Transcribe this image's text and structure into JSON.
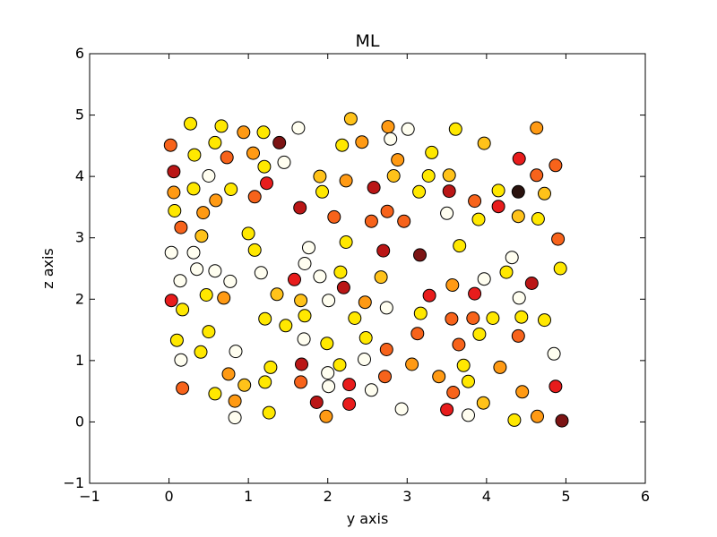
{
  "chart_data": {
    "type": "scatter",
    "title": "ML",
    "xlabel": "y axis",
    "ylabel": "z axis",
    "xlim": [
      -1,
      6
    ],
    "ylim": [
      -1,
      6
    ],
    "xticks": [
      "−1",
      "0",
      "1",
      "2",
      "3",
      "4",
      "5",
      "6"
    ],
    "yticks": [
      "−1",
      "0",
      "1",
      "2",
      "3",
      "4",
      "5",
      "6"
    ],
    "grid": false,
    "legend": "none",
    "colormap": "hot",
    "colors": {
      "white": "#fffef0",
      "yellow": "#ffe800",
      "gold": "#ffc21a",
      "orange": "#ff9a14",
      "dorange": "#f7631b",
      "red": "#e81c1c",
      "dred": "#ba1616",
      "maroon": "#7c1414",
      "black": "#2a120e"
    },
    "points": [
      {
        "x": 0.02,
        "y": 4.51,
        "c": "dorange"
      },
      {
        "x": 0.27,
        "y": 4.86,
        "c": "yellow"
      },
      {
        "x": 0.66,
        "y": 4.82,
        "c": "yellow"
      },
      {
        "x": 0.94,
        "y": 4.72,
        "c": "orange"
      },
      {
        "x": 1.19,
        "y": 4.72,
        "c": "yellow"
      },
      {
        "x": 1.63,
        "y": 4.79,
        "c": "white"
      },
      {
        "x": 2.29,
        "y": 4.94,
        "c": "gold"
      },
      {
        "x": 2.76,
        "y": 4.81,
        "c": "orange"
      },
      {
        "x": 3.01,
        "y": 4.77,
        "c": "white"
      },
      {
        "x": 3.61,
        "y": 4.77,
        "c": "yellow"
      },
      {
        "x": 4.63,
        "y": 4.79,
        "c": "orange"
      },
      {
        "x": 0.58,
        "y": 4.55,
        "c": "yellow"
      },
      {
        "x": 1.39,
        "y": 4.55,
        "c": "maroon"
      },
      {
        "x": 2.18,
        "y": 4.51,
        "c": "yellow"
      },
      {
        "x": 2.43,
        "y": 4.56,
        "c": "orange"
      },
      {
        "x": 2.79,
        "y": 4.61,
        "c": "white"
      },
      {
        "x": 3.97,
        "y": 4.54,
        "c": "gold"
      },
      {
        "x": 0.32,
        "y": 4.35,
        "c": "yellow"
      },
      {
        "x": 0.73,
        "y": 4.31,
        "c": "dorange"
      },
      {
        "x": 1.06,
        "y": 4.38,
        "c": "orange"
      },
      {
        "x": 1.45,
        "y": 4.23,
        "c": "white"
      },
      {
        "x": 2.88,
        "y": 4.27,
        "c": "orange"
      },
      {
        "x": 3.31,
        "y": 4.39,
        "c": "yellow"
      },
      {
        "x": 4.41,
        "y": 4.29,
        "c": "red"
      },
      {
        "x": 4.87,
        "y": 4.18,
        "c": "dorange"
      },
      {
        "x": 1.2,
        "y": 4.16,
        "c": "yellow"
      },
      {
        "x": 0.06,
        "y": 4.08,
        "c": "dred"
      },
      {
        "x": 0.5,
        "y": 4.01,
        "c": "white"
      },
      {
        "x": 1.9,
        "y": 4.0,
        "c": "gold"
      },
      {
        "x": 2.83,
        "y": 4.01,
        "c": "gold"
      },
      {
        "x": 3.27,
        "y": 4.01,
        "c": "yellow"
      },
      {
        "x": 3.53,
        "y": 4.02,
        "c": "gold"
      },
      {
        "x": 4.63,
        "y": 4.02,
        "c": "dorange"
      },
      {
        "x": 1.23,
        "y": 3.89,
        "c": "red"
      },
      {
        "x": 2.23,
        "y": 3.93,
        "c": "orange"
      },
      {
        "x": 0.06,
        "y": 3.74,
        "c": "orange"
      },
      {
        "x": 0.31,
        "y": 3.8,
        "c": "yellow"
      },
      {
        "x": 0.78,
        "y": 3.79,
        "c": "yellow"
      },
      {
        "x": 1.93,
        "y": 3.75,
        "c": "yellow"
      },
      {
        "x": 2.58,
        "y": 3.82,
        "c": "dred"
      },
      {
        "x": 3.15,
        "y": 3.75,
        "c": "yellow"
      },
      {
        "x": 3.53,
        "y": 3.76,
        "c": "dred"
      },
      {
        "x": 4.15,
        "y": 3.77,
        "c": "yellow"
      },
      {
        "x": 4.4,
        "y": 3.75,
        "c": "black"
      },
      {
        "x": 4.73,
        "y": 3.72,
        "c": "gold"
      },
      {
        "x": 0.59,
        "y": 3.61,
        "c": "orange"
      },
      {
        "x": 1.08,
        "y": 3.67,
        "c": "dorange"
      },
      {
        "x": 3.85,
        "y": 3.6,
        "c": "dorange"
      },
      {
        "x": 0.07,
        "y": 3.44,
        "c": "yellow"
      },
      {
        "x": 0.43,
        "y": 3.41,
        "c": "orange"
      },
      {
        "x": 1.65,
        "y": 3.49,
        "c": "dred"
      },
      {
        "x": 2.08,
        "y": 3.34,
        "c": "dorange"
      },
      {
        "x": 2.55,
        "y": 3.27,
        "c": "dorange"
      },
      {
        "x": 2.75,
        "y": 3.43,
        "c": "dorange"
      },
      {
        "x": 2.96,
        "y": 3.27,
        "c": "dorange"
      },
      {
        "x": 3.5,
        "y": 3.4,
        "c": "white"
      },
      {
        "x": 3.9,
        "y": 3.3,
        "c": "yellow"
      },
      {
        "x": 4.15,
        "y": 3.51,
        "c": "red"
      },
      {
        "x": 4.4,
        "y": 3.35,
        "c": "gold"
      },
      {
        "x": 4.65,
        "y": 3.31,
        "c": "yellow"
      },
      {
        "x": 0.15,
        "y": 3.17,
        "c": "dorange"
      },
      {
        "x": 0.41,
        "y": 3.03,
        "c": "gold"
      },
      {
        "x": 1.0,
        "y": 3.07,
        "c": "yellow"
      },
      {
        "x": 2.23,
        "y": 2.93,
        "c": "yellow"
      },
      {
        "x": 2.7,
        "y": 2.79,
        "c": "dred"
      },
      {
        "x": 3.66,
        "y": 2.87,
        "c": "yellow"
      },
      {
        "x": 4.9,
        "y": 2.98,
        "c": "dorange"
      },
      {
        "x": 0.03,
        "y": 2.76,
        "c": "white"
      },
      {
        "x": 0.31,
        "y": 2.76,
        "c": "white"
      },
      {
        "x": 1.08,
        "y": 2.8,
        "c": "yellow"
      },
      {
        "x": 1.76,
        "y": 2.84,
        "c": "white"
      },
      {
        "x": 3.16,
        "y": 2.72,
        "c": "maroon"
      },
      {
        "x": 4.32,
        "y": 2.68,
        "c": "white"
      },
      {
        "x": 0.35,
        "y": 2.49,
        "c": "white"
      },
      {
        "x": 0.58,
        "y": 2.46,
        "c": "white"
      },
      {
        "x": 1.16,
        "y": 2.43,
        "c": "white"
      },
      {
        "x": 1.71,
        "y": 2.58,
        "c": "white"
      },
      {
        "x": 2.16,
        "y": 2.44,
        "c": "yellow"
      },
      {
        "x": 4.25,
        "y": 2.44,
        "c": "yellow"
      },
      {
        "x": 4.93,
        "y": 2.5,
        "c": "yellow"
      },
      {
        "x": 0.14,
        "y": 2.3,
        "c": "white"
      },
      {
        "x": 0.77,
        "y": 2.29,
        "c": "white"
      },
      {
        "x": 1.58,
        "y": 2.32,
        "c": "red"
      },
      {
        "x": 1.9,
        "y": 2.37,
        "c": "white"
      },
      {
        "x": 2.2,
        "y": 2.19,
        "c": "dred"
      },
      {
        "x": 2.67,
        "y": 2.36,
        "c": "gold"
      },
      {
        "x": 3.57,
        "y": 2.23,
        "c": "orange"
      },
      {
        "x": 3.97,
        "y": 2.33,
        "c": "white"
      },
      {
        "x": 4.57,
        "y": 2.26,
        "c": "dred"
      },
      {
        "x": 0.47,
        "y": 2.07,
        "c": "yellow"
      },
      {
        "x": 0.69,
        "y": 2.02,
        "c": "orange"
      },
      {
        "x": 1.36,
        "y": 2.08,
        "c": "gold"
      },
      {
        "x": 1.66,
        "y": 1.98,
        "c": "gold"
      },
      {
        "x": 2.01,
        "y": 1.98,
        "c": "white"
      },
      {
        "x": 2.47,
        "y": 1.95,
        "c": "orange"
      },
      {
        "x": 3.28,
        "y": 2.06,
        "c": "red"
      },
      {
        "x": 3.85,
        "y": 2.09,
        "c": "red"
      },
      {
        "x": 4.41,
        "y": 2.02,
        "c": "white"
      },
      {
        "x": 0.03,
        "y": 1.98,
        "c": "red"
      },
      {
        "x": 0.17,
        "y": 1.83,
        "c": "yellow"
      },
      {
        "x": 1.21,
        "y": 1.68,
        "c": "yellow"
      },
      {
        "x": 1.47,
        "y": 1.57,
        "c": "yellow"
      },
      {
        "x": 1.71,
        "y": 1.73,
        "c": "yellow"
      },
      {
        "x": 2.34,
        "y": 1.69,
        "c": "yellow"
      },
      {
        "x": 2.74,
        "y": 1.86,
        "c": "white"
      },
      {
        "x": 3.17,
        "y": 1.77,
        "c": "yellow"
      },
      {
        "x": 3.56,
        "y": 1.68,
        "c": "dorange"
      },
      {
        "x": 3.83,
        "y": 1.69,
        "c": "dorange"
      },
      {
        "x": 4.08,
        "y": 1.69,
        "c": "yellow"
      },
      {
        "x": 4.44,
        "y": 1.71,
        "c": "yellow"
      },
      {
        "x": 4.73,
        "y": 1.66,
        "c": "yellow"
      },
      {
        "x": 0.5,
        "y": 1.47,
        "c": "yellow"
      },
      {
        "x": 0.1,
        "y": 1.33,
        "c": "yellow"
      },
      {
        "x": 1.7,
        "y": 1.35,
        "c": "white"
      },
      {
        "x": 1.99,
        "y": 1.28,
        "c": "yellow"
      },
      {
        "x": 2.48,
        "y": 1.37,
        "c": "yellow"
      },
      {
        "x": 3.13,
        "y": 1.44,
        "c": "dorange"
      },
      {
        "x": 3.91,
        "y": 1.43,
        "c": "yellow"
      },
      {
        "x": 4.4,
        "y": 1.4,
        "c": "dorange"
      },
      {
        "x": 3.65,
        "y": 1.26,
        "c": "dorange"
      },
      {
        "x": 0.4,
        "y": 1.14,
        "c": "yellow"
      },
      {
        "x": 0.84,
        "y": 1.15,
        "c": "white"
      },
      {
        "x": 2.74,
        "y": 1.18,
        "c": "dorange"
      },
      {
        "x": 4.85,
        "y": 1.11,
        "c": "white"
      },
      {
        "x": 0.15,
        "y": 1.01,
        "c": "white"
      },
      {
        "x": 1.28,
        "y": 0.89,
        "c": "yellow"
      },
      {
        "x": 1.67,
        "y": 0.94,
        "c": "dred"
      },
      {
        "x": 2.15,
        "y": 0.93,
        "c": "yellow"
      },
      {
        "x": 2.46,
        "y": 1.02,
        "c": "white"
      },
      {
        "x": 3.06,
        "y": 0.94,
        "c": "orange"
      },
      {
        "x": 3.71,
        "y": 0.92,
        "c": "yellow"
      },
      {
        "x": 4.17,
        "y": 0.89,
        "c": "orange"
      },
      {
        "x": 0.75,
        "y": 0.78,
        "c": "orange"
      },
      {
        "x": 2.0,
        "y": 0.8,
        "c": "white"
      },
      {
        "x": 2.72,
        "y": 0.74,
        "c": "dorange"
      },
      {
        "x": 3.4,
        "y": 0.74,
        "c": "orange"
      },
      {
        "x": 0.95,
        "y": 0.6,
        "c": "gold"
      },
      {
        "x": 1.21,
        "y": 0.65,
        "c": "yellow"
      },
      {
        "x": 1.66,
        "y": 0.65,
        "c": "dorange"
      },
      {
        "x": 2.01,
        "y": 0.58,
        "c": "white"
      },
      {
        "x": 2.27,
        "y": 0.61,
        "c": "red"
      },
      {
        "x": 3.77,
        "y": 0.66,
        "c": "yellow"
      },
      {
        "x": 4.87,
        "y": 0.58,
        "c": "red"
      },
      {
        "x": 0.17,
        "y": 0.55,
        "c": "dorange"
      },
      {
        "x": 0.58,
        "y": 0.46,
        "c": "yellow"
      },
      {
        "x": 2.55,
        "y": 0.52,
        "c": "white"
      },
      {
        "x": 3.58,
        "y": 0.48,
        "c": "dorange"
      },
      {
        "x": 4.45,
        "y": 0.49,
        "c": "orange"
      },
      {
        "x": 0.83,
        "y": 0.34,
        "c": "orange"
      },
      {
        "x": 1.86,
        "y": 0.32,
        "c": "dred"
      },
      {
        "x": 2.27,
        "y": 0.29,
        "c": "red"
      },
      {
        "x": 3.96,
        "y": 0.31,
        "c": "gold"
      },
      {
        "x": 1.26,
        "y": 0.15,
        "c": "yellow"
      },
      {
        "x": 2.93,
        "y": 0.21,
        "c": "white"
      },
      {
        "x": 3.5,
        "y": 0.2,
        "c": "red"
      },
      {
        "x": 0.83,
        "y": 0.07,
        "c": "white"
      },
      {
        "x": 1.98,
        "y": 0.09,
        "c": "orange"
      },
      {
        "x": 3.77,
        "y": 0.11,
        "c": "white"
      },
      {
        "x": 4.35,
        "y": 0.03,
        "c": "yellow"
      },
      {
        "x": 4.64,
        "y": 0.09,
        "c": "orange"
      },
      {
        "x": 4.95,
        "y": 0.02,
        "c": "maroon"
      }
    ]
  }
}
